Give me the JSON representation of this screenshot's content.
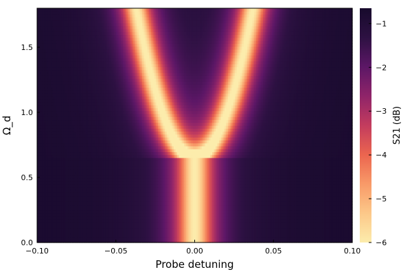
{
  "chart_data": {
    "type": "heatmap",
    "title": "",
    "xlabel": "Probe detuning",
    "ylabel": "Ω_d",
    "xlim": [
      -0.1,
      0.1
    ],
    "ylim": [
      0.0,
      1.8
    ],
    "x_ticks": [
      -0.1,
      -0.05,
      0.0,
      0.05,
      0.1
    ],
    "x_tick_labels": [
      "−0.10",
      "−0.05",
      "0.00",
      "0.05",
      "0.10"
    ],
    "y_ticks": [
      0.0,
      0.5,
      1.0,
      1.5
    ],
    "y_tick_labels": [
      "0.0",
      "0.5",
      "1.0",
      "1.5"
    ],
    "colorbar": {
      "label": "S21 (dB)",
      "range": [
        -6.0,
        -0.65
      ],
      "ticks": [
        -1,
        -2,
        -3,
        -4,
        -5,
        -6
      ],
      "tick_labels": [
        "−1",
        "−2",
        "−3",
        "−4",
        "−5",
        "−6"
      ],
      "colormap": "magma-reversed",
      "colormap_colors": [
        "#fcecac",
        "#fcc889",
        "#f89a68",
        "#eb654f",
        "#c33c5e",
        "#8f2469",
        "#5c1766",
        "#2d1142",
        "#170a2c"
      ]
    },
    "features": {
      "single_dip_center_x": 0.0,
      "split_onset_y": 0.65,
      "branches_at_top": [
        -0.037,
        0.037
      ],
      "branch_half_width": 0.0085,
      "central_dip_half_width": 0.011,
      "baseline_db": -0.7,
      "dip_depth_db": -6.0
    },
    "grid": false,
    "legend": "colorbar-right"
  }
}
